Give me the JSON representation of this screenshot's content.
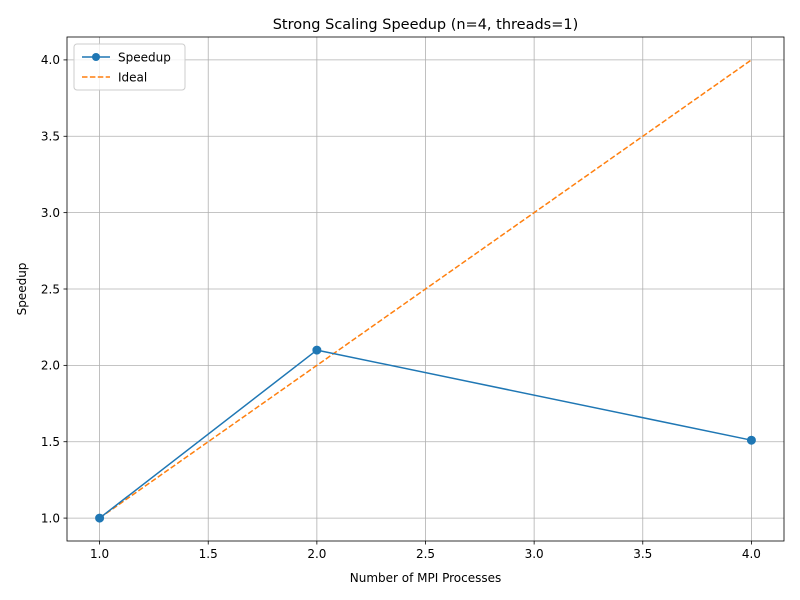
{
  "chart_data": {
    "type": "line",
    "title": "Strong Scaling Speedup (n=4, threads=1)",
    "xlabel": "Number of MPI Processes",
    "ylabel": "Speedup",
    "xlim": [
      0.85,
      4.15
    ],
    "ylim": [
      0.85,
      4.15
    ],
    "xticks": [
      1.0,
      1.5,
      2.0,
      2.5,
      3.0,
      3.5,
      4.0
    ],
    "xtick_labels": [
      "1.0",
      "1.5",
      "2.0",
      "2.5",
      "3.0",
      "3.5",
      "4.0"
    ],
    "yticks": [
      1.0,
      1.5,
      2.0,
      2.5,
      3.0,
      3.5,
      4.0
    ],
    "ytick_labels": [
      "1.0",
      "1.5",
      "2.0",
      "2.5",
      "3.0",
      "3.5",
      "4.0"
    ],
    "grid": true,
    "legend_position": "top-left",
    "series": [
      {
        "name": "Speedup",
        "x": [
          1,
          2,
          4
        ],
        "y": [
          1.0,
          2.1,
          1.51
        ],
        "color": "#1f77b4",
        "style": "solid",
        "marker": "circle"
      },
      {
        "name": "Ideal",
        "x": [
          1,
          2,
          4
        ],
        "y": [
          1.0,
          2.0,
          4.0
        ],
        "color": "#ff7f0e",
        "style": "dashed",
        "marker": "none"
      }
    ]
  }
}
